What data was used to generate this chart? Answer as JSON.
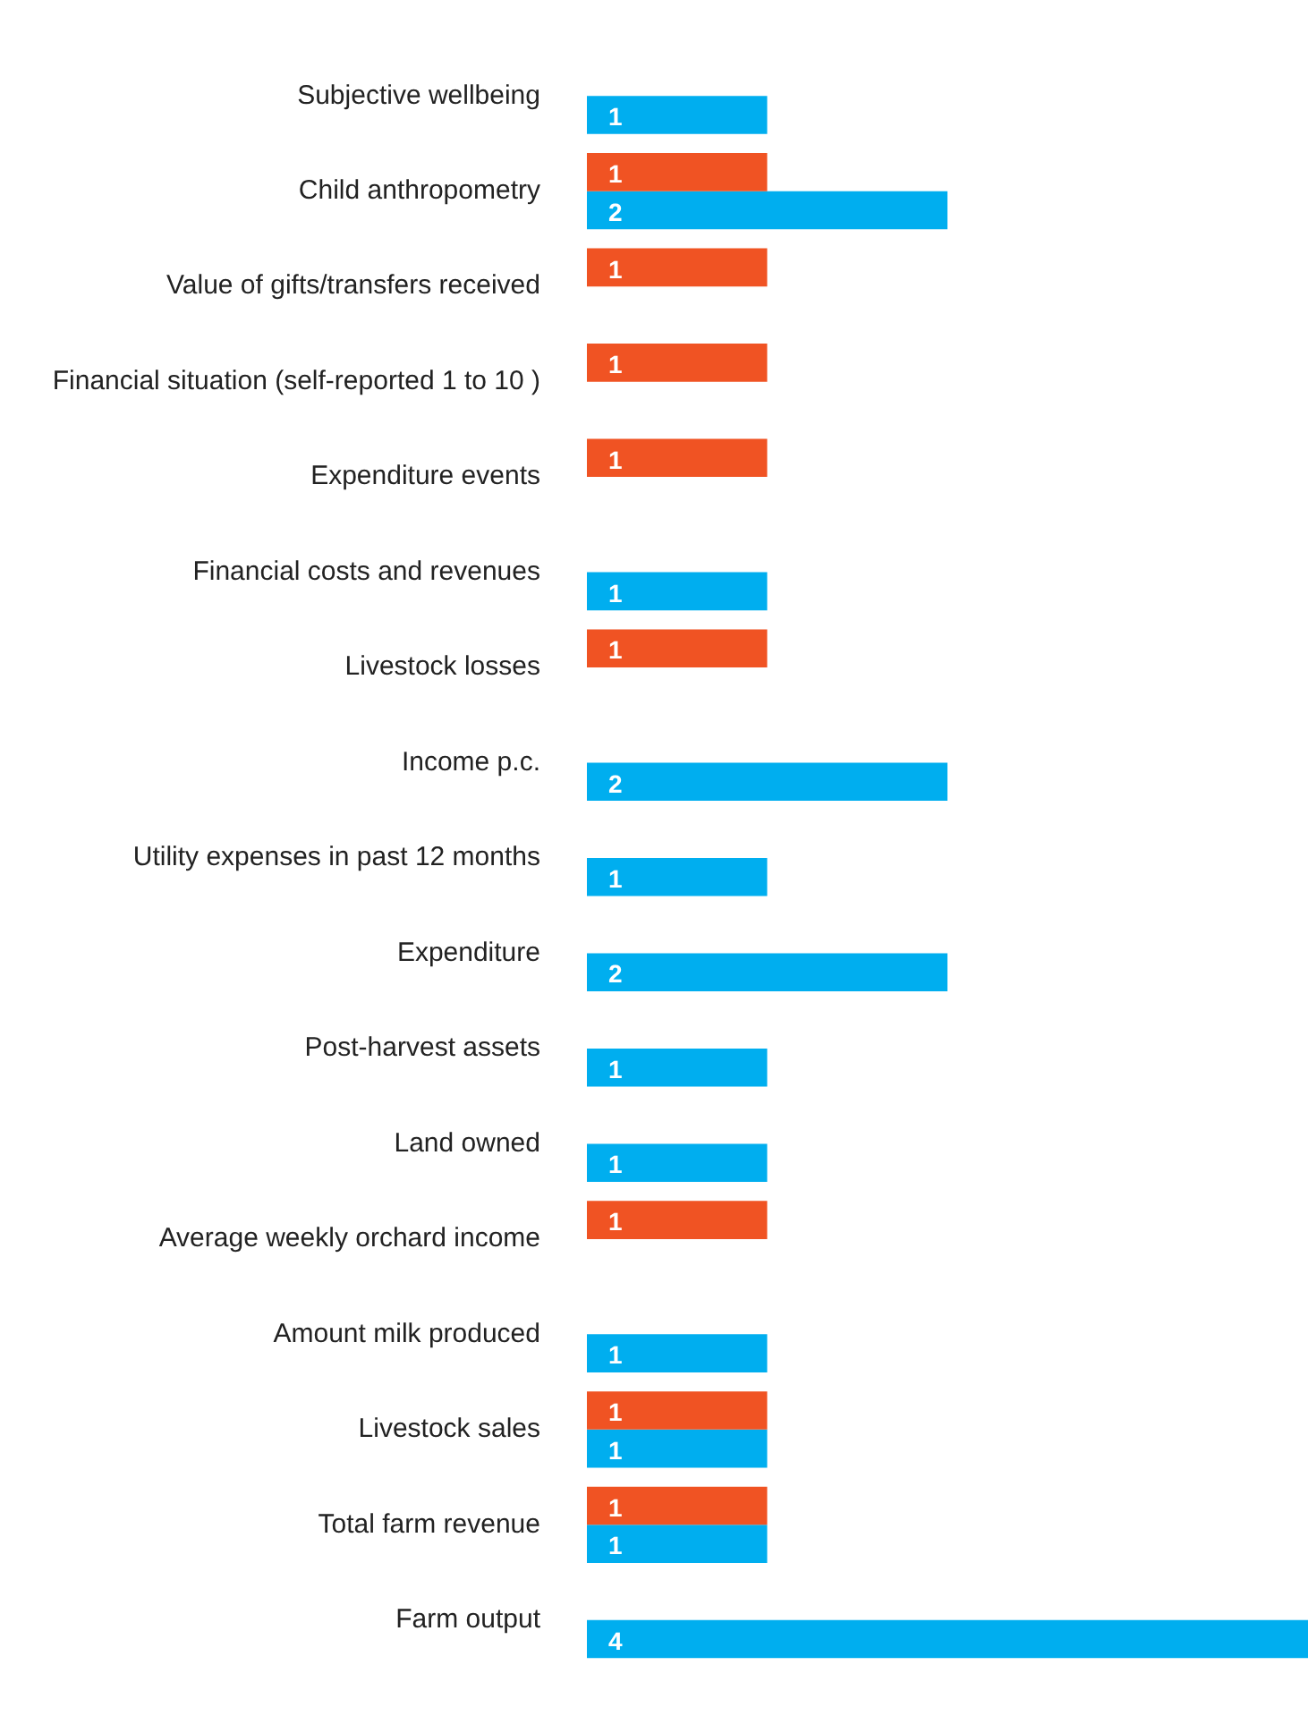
{
  "chart_data": {
    "type": "bar",
    "orientation": "horizontal",
    "categories": [
      "Subjective wellbeing",
      "Child anthropometry",
      "Value of gifts/transfers received",
      "Financial situation (self-reported 1 to 10 )",
      "Expenditure events",
      "Financial costs and revenues",
      "Livestock losses",
      "Income p.c.",
      "Utility expenses in past 12 months",
      "Expenditure",
      "Post-harvest assets",
      "Land owned",
      "Average weekly orchard income",
      "Amount milk produced",
      "Livestock sales",
      "Total farm revenue",
      "Farm output"
    ],
    "series": [
      {
        "color": "#f05323",
        "values": [
          0,
          1,
          1,
          1,
          1,
          0,
          1,
          0,
          0,
          0,
          0,
          0,
          1,
          0,
          1,
          1,
          0
        ],
        "value_labels": [
          null,
          "1",
          "1",
          "1",
          "1",
          null,
          "1",
          null,
          null,
          null,
          null,
          null,
          "1",
          null,
          "1",
          "1",
          null
        ]
      },
      {
        "color": "#00aeef",
        "values": [
          1,
          2,
          0,
          0,
          0,
          1,
          0,
          2,
          1,
          2,
          1,
          1,
          0,
          1,
          1,
          1,
          4
        ],
        "value_labels": [
          "1",
          "2",
          null,
          null,
          null,
          "1",
          null,
          "2",
          "1",
          "2",
          "1",
          "1",
          null,
          "1",
          "1",
          "1",
          "4"
        ]
      }
    ],
    "xlim": [
      0,
      4
    ],
    "tick_labels": "y",
    "legend": false
  }
}
